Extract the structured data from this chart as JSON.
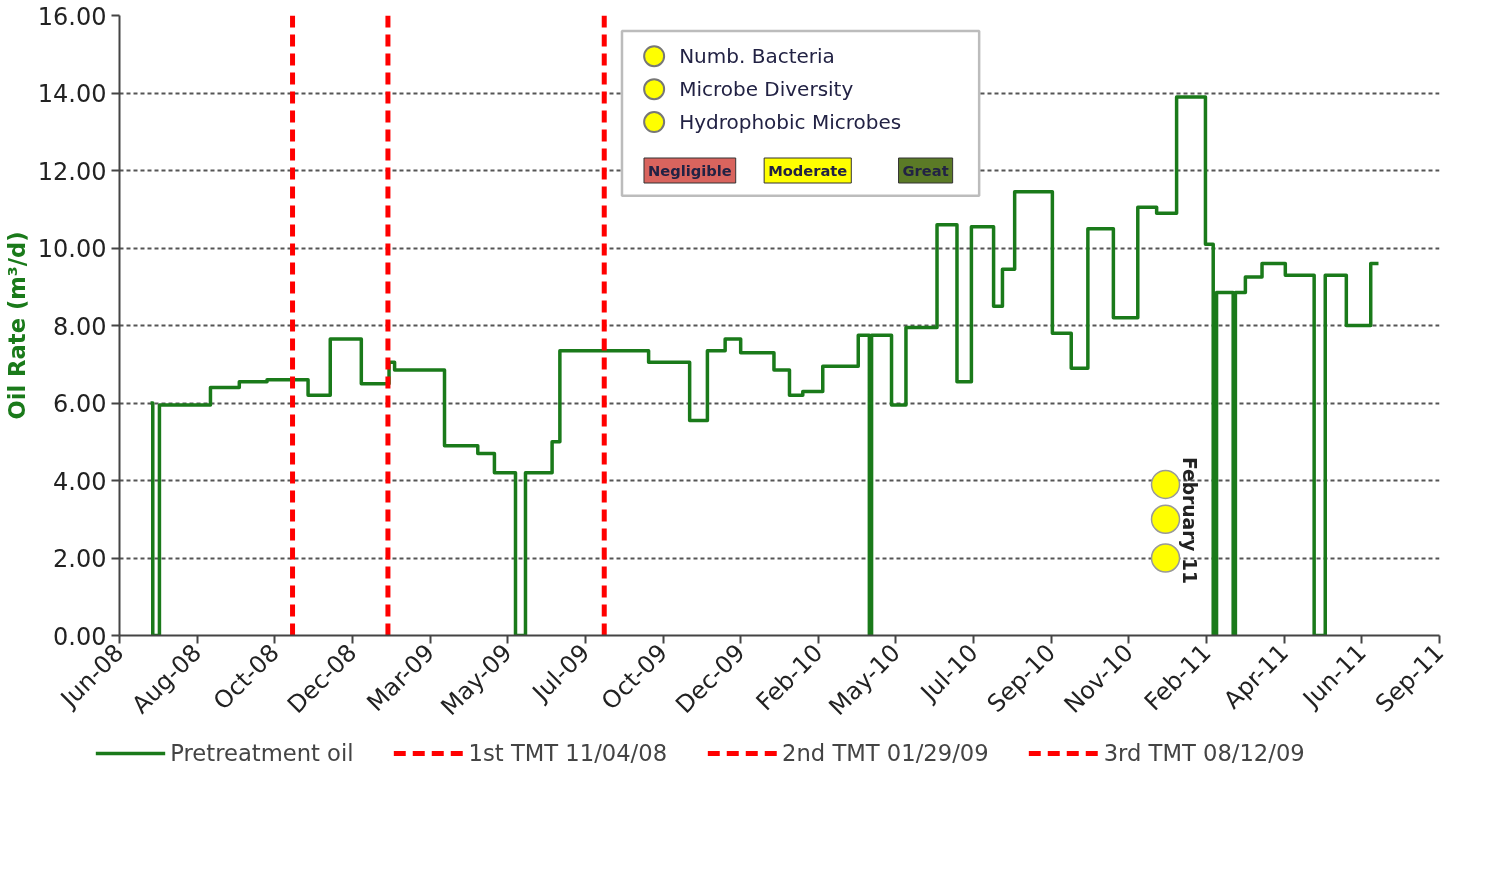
{
  "chart_data": {
    "type": "step",
    "ylabel": "Oil Rate (m³/d)",
    "legend": "bottom",
    "grid": "y",
    "line_style": "solid",
    "xlim": [
      "2008-06-01",
      "2011-09-04"
    ],
    "xticks": [
      {
        "value": "2008-06-01",
        "label": "Jun-08"
      },
      {
        "value": "2008-08-10",
        "label": "Aug-08"
      },
      {
        "value": "2008-10-19",
        "label": "Oct-08"
      },
      {
        "value": "2008-12-28",
        "label": "Dec-08"
      },
      {
        "value": "2009-03-08",
        "label": "Mar-09"
      },
      {
        "value": "2009-05-17",
        "label": "May-09"
      },
      {
        "value": "2009-07-26",
        "label": "Jul-09"
      },
      {
        "value": "2009-10-04",
        "label": "Oct-09"
      },
      {
        "value": "2009-12-13",
        "label": "Dec-09"
      },
      {
        "value": "2010-02-21",
        "label": "Feb-10"
      },
      {
        "value": "2010-05-02",
        "label": "May-10"
      },
      {
        "value": "2010-07-11",
        "label": "Jul-10"
      },
      {
        "value": "2010-09-19",
        "label": "Sep-10"
      },
      {
        "value": "2010-11-28",
        "label": "Nov-10"
      },
      {
        "value": "2011-02-06",
        "label": "Feb-11"
      },
      {
        "value": "2011-04-17",
        "label": "Apr-11"
      },
      {
        "value": "2011-06-26",
        "label": "Jun-11"
      },
      {
        "value": "2011-09-04",
        "label": "Sep-11"
      }
    ],
    "ylim": [
      0,
      16
    ],
    "yticks": [
      {
        "value": 0,
        "label": "0.00"
      },
      {
        "value": 2,
        "label": "2.00"
      },
      {
        "value": 4,
        "label": "4.00"
      },
      {
        "value": 6,
        "label": "6.00"
      },
      {
        "value": 8,
        "label": "8.00"
      },
      {
        "value": 10,
        "label": "10.00"
      },
      {
        "value": 12,
        "label": "12.00"
      },
      {
        "value": 14,
        "label": "14.00"
      },
      {
        "value": 16,
        "label": "16.00"
      }
    ],
    "series": [
      {
        "name": "Pretreatment oil",
        "color": "#1a7a1a",
        "x": [
          "2008-06-29",
          "2008-07-01",
          "2008-07-07",
          "2008-08-22",
          "2008-09-17",
          "2008-10-12",
          "2008-11-18",
          "2008-12-08",
          "2009-01-05",
          "2009-01-30",
          "2009-02-04",
          "2009-03-21",
          "2009-04-20",
          "2009-05-05",
          "2009-05-24",
          "2009-06-02",
          "2009-06-26",
          "2009-07-03",
          "2009-09-21",
          "2009-10-28",
          "2009-11-13",
          "2009-11-29",
          "2009-12-13",
          "2010-01-12",
          "2010-01-26",
          "2010-02-07",
          "2010-02-25",
          "2010-03-29",
          "2010-04-08",
          "2010-04-10",
          "2010-04-28",
          "2010-05-11",
          "2010-06-08",
          "2010-06-26",
          "2010-07-09",
          "2010-07-29",
          "2010-08-06",
          "2010-08-17",
          "2010-09-20",
          "2010-10-07",
          "2010-10-22",
          "2010-11-14",
          "2010-12-06",
          "2010-12-23",
          "2011-01-10",
          "2011-02-05",
          "2011-02-12",
          "2011-02-15",
          "2011-03-02",
          "2011-03-04",
          "2011-03-13",
          "2011-03-28",
          "2011-04-18",
          "2011-05-14",
          "2011-05-24",
          "2011-06-12",
          "2011-07-04",
          "2011-07-11"
        ],
        "values": [
          6.0,
          0,
          5.95,
          6.4,
          6.55,
          6.6,
          6.2,
          7.65,
          6.5,
          7.05,
          6.85,
          4.9,
          4.7,
          4.2,
          0,
          4.2,
          5.0,
          7.35,
          7.05,
          5.55,
          7.35,
          7.65,
          7.3,
          6.85,
          6.2,
          6.3,
          6.95,
          7.75,
          0,
          7.75,
          5.95,
          7.95,
          10.6,
          6.55,
          10.55,
          8.5,
          9.45,
          11.45,
          7.8,
          6.9,
          10.5,
          8.2,
          11.05,
          10.9,
          13.9,
          10.1,
          0,
          8.85,
          0,
          8.85,
          9.25,
          9.6,
          9.3,
          0,
          9.3,
          8.0,
          9.6,
          9.6
        ]
      },
      {
        "name": "Numb. Bacteria",
        "type": "scatter",
        "marker": "circle",
        "color": "#ffff00",
        "x": [
          "2010-12-31"
        ],
        "values": [
          3.9
        ]
      },
      {
        "name": "Microbe Diversity",
        "type": "scatter",
        "marker": "circle",
        "color": "#ffff00",
        "x": [
          "2010-12-31"
        ],
        "values": [
          3.0
        ]
      },
      {
        "name": "Hydrophobic Microbes",
        "type": "scatter",
        "marker": "circle",
        "color": "#ffff00",
        "x": [
          "2010-12-31"
        ],
        "values": [
          2.0
        ]
      }
    ],
    "ref_lines": [
      {
        "axis": "x",
        "value": "2008-11-04",
        "label": "1st TMT 11/04/08",
        "color": "#ff0000",
        "line_style": "dashed"
      },
      {
        "axis": "x",
        "value": "2009-01-29",
        "label": "2nd TMT 01/29/09",
        "color": "#ff0000",
        "line_style": "dashed"
      },
      {
        "axis": "x",
        "value": "2009-08-12",
        "label": "3rd TMT 08/12/09",
        "color": "#ff0000",
        "line_style": "dashed"
      }
    ],
    "annotations": [
      "February 11",
      "Negligible",
      "Moderate",
      "Great"
    ]
  }
}
